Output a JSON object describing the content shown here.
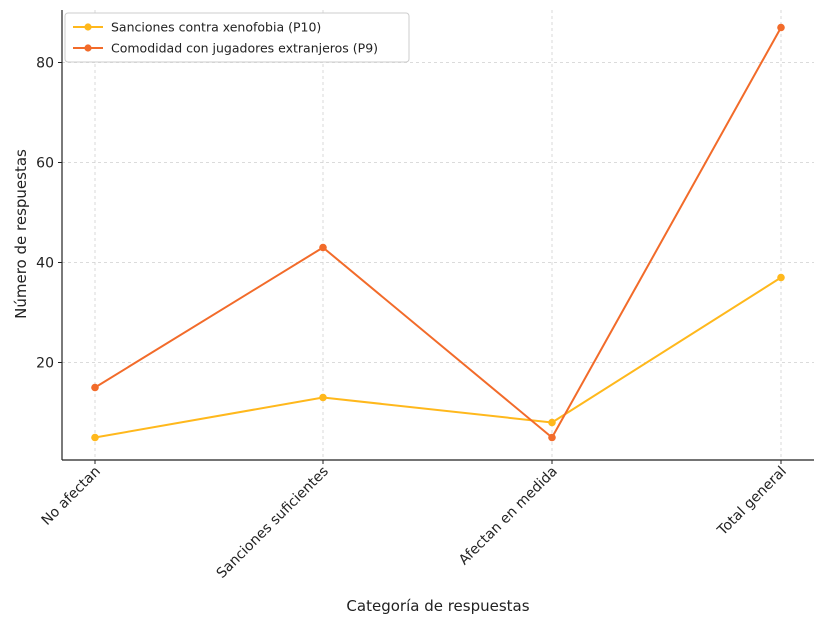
{
  "chart_data": {
    "type": "line",
    "title": "",
    "xlabel": "Categoría de respuestas",
    "ylabel": "Número de respuestas",
    "categories": [
      "No afectan",
      "Sanciones suficientes",
      "Afectan en medida",
      "Total general"
    ],
    "ylim": [
      0.5,
      89
    ],
    "yticks": [
      20,
      40,
      60,
      80
    ],
    "grid": true,
    "legend_position": "top-left",
    "series": [
      {
        "name": "Sanciones contra xenofobia (P10)",
        "values": [
          5,
          13,
          8,
          37
        ],
        "color": "#FFB81C"
      },
      {
        "name": "Comodidad con jugadores extranjeros (P9)",
        "values": [
          15,
          43,
          5,
          87
        ],
        "color": "#F26B2A"
      }
    ]
  }
}
